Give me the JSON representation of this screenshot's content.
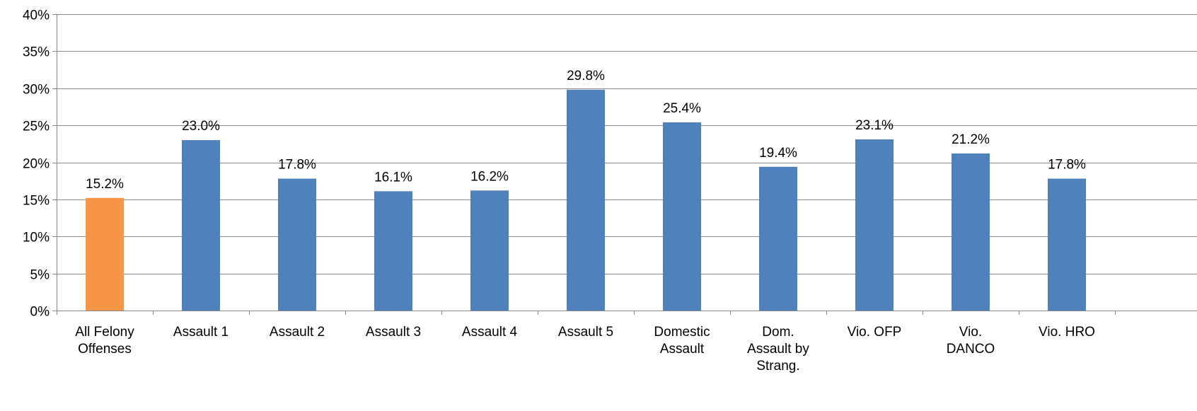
{
  "chart_data": {
    "type": "bar",
    "categories": [
      "All Felony Offenses",
      "Assault 1",
      "Assault 2",
      "Assault 3",
      "Assault 4",
      "Assault 5",
      "Domestic Assault",
      "Dom. Assault by Strang.",
      "Vio. OFP",
      "Vio. DANCO",
      "Vio. HRO"
    ],
    "category_lines": [
      [
        "All Felony",
        "Offenses"
      ],
      [
        "Assault 1"
      ],
      [
        "Assault 2"
      ],
      [
        "Assault 3"
      ],
      [
        "Assault 4"
      ],
      [
        "Assault 5"
      ],
      [
        "Domestic",
        "Assault"
      ],
      [
        "Dom.",
        "Assault by",
        "Strang."
      ],
      [
        "Vio. OFP"
      ],
      [
        "Vio.",
        "DANCO"
      ],
      [
        "Vio. HRO"
      ]
    ],
    "values": [
      15.2,
      23.0,
      17.8,
      16.1,
      16.2,
      29.8,
      25.4,
      19.4,
      23.1,
      21.2,
      17.8
    ],
    "data_labels": [
      "15.2%",
      "23.0%",
      "17.8%",
      "16.1%",
      "16.2%",
      "29.8%",
      "25.4%",
      "19.4%",
      "23.1%",
      "21.2%",
      "17.8%"
    ],
    "bar_colors": [
      "#F79646",
      "#4F81BD",
      "#4F81BD",
      "#4F81BD",
      "#4F81BD",
      "#4F81BD",
      "#4F81BD",
      "#4F81BD",
      "#4F81BD",
      "#4F81BD",
      "#4F81BD"
    ],
    "ylim": [
      0,
      40
    ],
    "ytick_values": [
      0,
      5,
      10,
      15,
      20,
      25,
      30,
      35,
      40
    ],
    "ytick_labels": [
      "0%",
      "5%",
      "10%",
      "15%",
      "20%",
      "25%",
      "30%",
      "35%",
      "40%"
    ],
    "title": "",
    "xlabel": "",
    "ylabel": "",
    "grid": true,
    "grid_color": "#868686",
    "axis_color": "#868686"
  }
}
